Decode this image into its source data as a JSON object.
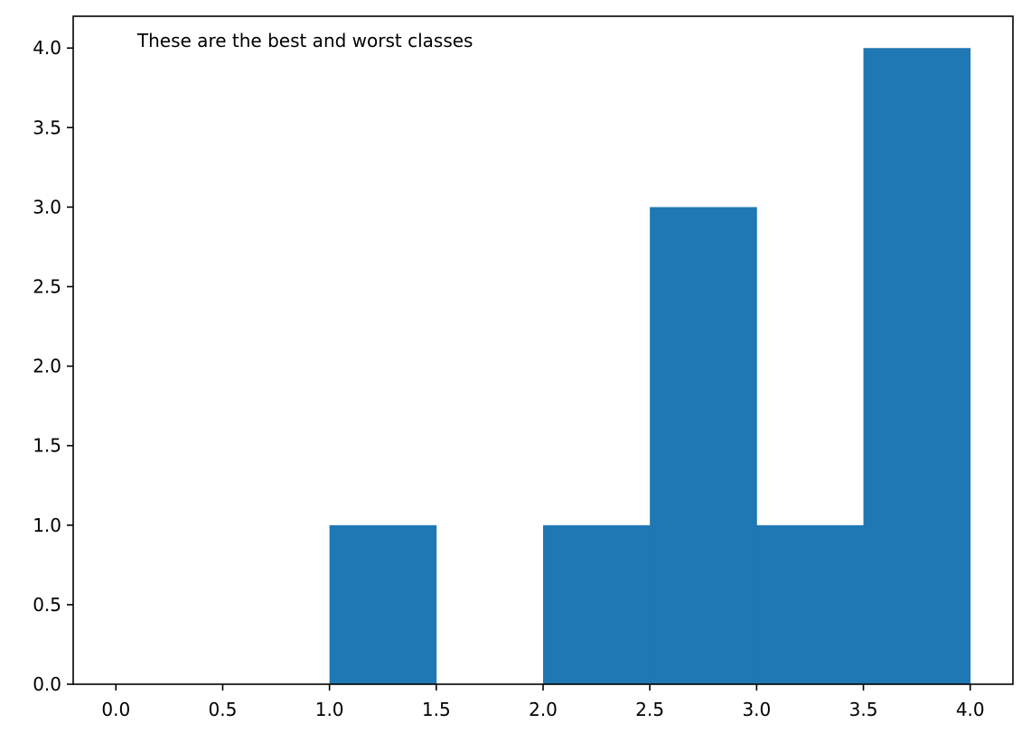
{
  "chart_data": {
    "type": "bar",
    "subtype": "histogram",
    "bins": [
      {
        "start": 0.0,
        "end": 0.5,
        "count": 0
      },
      {
        "start": 0.5,
        "end": 1.0,
        "count": 0
      },
      {
        "start": 1.0,
        "end": 1.5,
        "count": 1
      },
      {
        "start": 1.5,
        "end": 2.0,
        "count": 0
      },
      {
        "start": 2.0,
        "end": 2.5,
        "count": 1
      },
      {
        "start": 2.5,
        "end": 3.0,
        "count": 3
      },
      {
        "start": 3.0,
        "end": 3.5,
        "count": 1
      },
      {
        "start": 3.5,
        "end": 4.0,
        "count": 4
      }
    ],
    "annotation": "These are the best and worst classes",
    "title": "",
    "xlabel": "",
    "ylabel": "",
    "xlim": [
      -0.2,
      4.2
    ],
    "ylim": [
      0,
      4.2
    ],
    "x_ticks": [
      "0.0",
      "0.5",
      "1.0",
      "1.5",
      "2.0",
      "2.5",
      "3.0",
      "3.5",
      "4.0"
    ],
    "y_ticks": [
      "0.0",
      "0.5",
      "1.0",
      "1.5",
      "2.0",
      "2.5",
      "3.0",
      "3.5",
      "4.0"
    ],
    "grid": false,
    "bar_color": "#1f77b4"
  }
}
